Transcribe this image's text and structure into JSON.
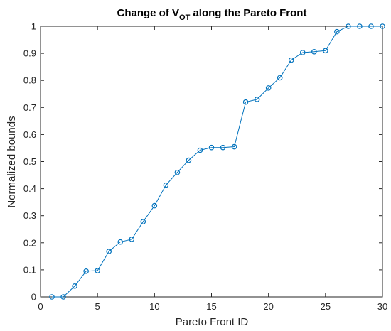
{
  "chart_data": {
    "type": "line",
    "title": "Change of V",
    "title_subscript": "OT",
    "title_suffix": " along the Pareto Front",
    "xlabel": "Pareto Front ID",
    "ylabel": "Normalized bounds",
    "xlim": [
      0,
      30
    ],
    "ylim": [
      0,
      1
    ],
    "xticks": [
      0,
      5,
      10,
      15,
      20,
      25,
      30
    ],
    "yticks": [
      0,
      0.1,
      0.2,
      0.3,
      0.4,
      0.5,
      0.6,
      0.7,
      0.8,
      0.9,
      1
    ],
    "xtick_labels": [
      "0",
      "5",
      "10",
      "15",
      "20",
      "25",
      "30"
    ],
    "ytick_labels": [
      "0",
      "0.1",
      "0.2",
      "0.3",
      "0.4",
      "0.5",
      "0.6",
      "0.7",
      "0.8",
      "0.9",
      "1"
    ],
    "grid": false,
    "legend": "none",
    "marker": "circle",
    "color": "#0072BD",
    "series": [
      {
        "x": [
          1,
          2,
          3,
          4,
          5,
          6,
          7,
          8,
          9,
          10,
          11,
          12,
          13,
          14,
          15,
          16,
          17,
          18,
          19,
          20,
          21,
          22,
          23,
          24,
          25,
          26,
          27,
          28,
          29,
          30
        ],
        "values": [
          0.0,
          0.0,
          0.04,
          0.095,
          0.097,
          0.168,
          0.203,
          0.213,
          0.278,
          0.337,
          0.413,
          0.46,
          0.505,
          0.542,
          0.552,
          0.552,
          0.555,
          0.72,
          0.73,
          0.772,
          0.81,
          0.875,
          0.903,
          0.906,
          0.91,
          0.98,
          1.0,
          1.0,
          1.0,
          1.0
        ]
      }
    ]
  }
}
